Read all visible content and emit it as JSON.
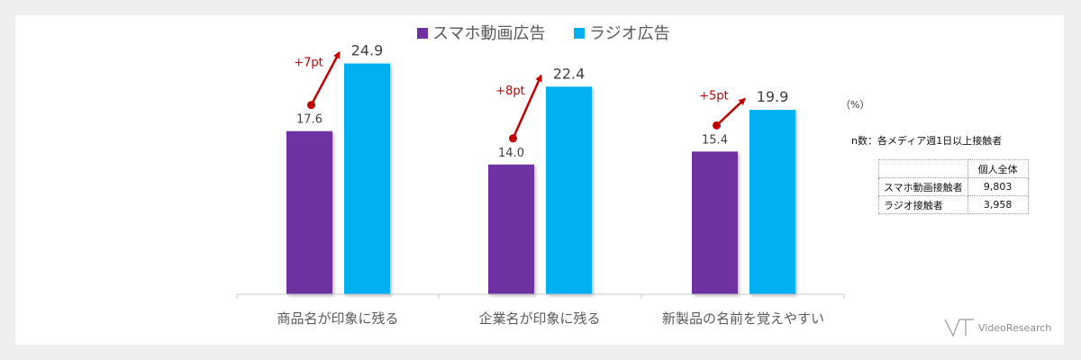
{
  "chart_data": {
    "type": "bar",
    "categories": [
      "商品名が印象に残る",
      "企業名が印象に残る",
      "新製品の名前を覚えやすい"
    ],
    "series": [
      {
        "name": "スマホ動画広告",
        "values": [
          17.6,
          14.0,
          15.4
        ],
        "color": "#7030a0"
      },
      {
        "name": "ラジオ広告",
        "values": [
          24.9,
          22.4,
          19.9
        ],
        "color": "#00b0f0"
      }
    ],
    "value_labels": [
      [
        "17.6",
        "14.0",
        "15.4"
      ],
      [
        "24.9",
        "22.4",
        "19.9"
      ]
    ],
    "differences": [
      "+7pt",
      "+8pt",
      "+5pt"
    ],
    "ylim": [
      0,
      30
    ],
    "unit": "（%）",
    "legend_position": "top",
    "grid": false,
    "colors": {
      "arrow": "#c00000",
      "axis": "#c8c8c8",
      "label": "#595959"
    }
  },
  "sample_note": "n数：各メディア週1日以上接触者",
  "sample_table": {
    "header": "個人全体",
    "rows": [
      {
        "label": "スマホ動画接触者",
        "value": "9,803"
      },
      {
        "label": "ラジオ接触者",
        "value": "3,958"
      }
    ]
  },
  "logo_text": "VideoResearch",
  "logo_icon": "video-research-logo-mark"
}
